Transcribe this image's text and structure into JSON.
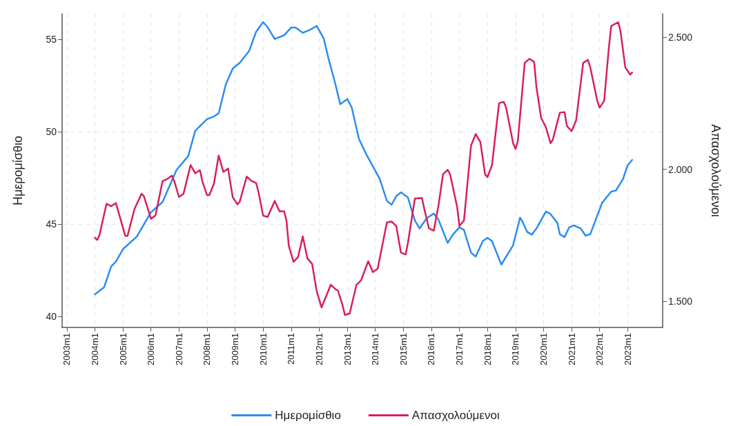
{
  "chart_data": {
    "type": "line",
    "ylabel": "Ημερομίσθιο",
    "y2label": "Απασχολούμενοι",
    "xlim": [
      "2002-11",
      "2024-04"
    ],
    "xticks": [
      {
        "value": "2003-01",
        "label": "2003m1"
      },
      {
        "value": "2004-01",
        "label": "2004m1"
      },
      {
        "value": "2005-01",
        "label": "2005m1"
      },
      {
        "value": "2006-01",
        "label": "2006m1"
      },
      {
        "value": "2007-01",
        "label": "2007m1"
      },
      {
        "value": "2008-01",
        "label": "2008m1"
      },
      {
        "value": "2009-01",
        "label": "2009m1"
      },
      {
        "value": "2010-01",
        "label": "2010m1"
      },
      {
        "value": "2011-01",
        "label": "2011m1"
      },
      {
        "value": "2012-01",
        "label": "2012m1"
      },
      {
        "value": "2013-01",
        "label": "2013m1"
      },
      {
        "value": "2014-01",
        "label": "2014m1"
      },
      {
        "value": "2015-01",
        "label": "2015m1"
      },
      {
        "value": "2016-01",
        "label": "2016m1"
      },
      {
        "value": "2017-01",
        "label": "2017m1"
      },
      {
        "value": "2018-01",
        "label": "2018m1"
      },
      {
        "value": "2019-01",
        "label": "2019m1"
      },
      {
        "value": "2020-01",
        "label": "2020m1"
      },
      {
        "value": "2021-01",
        "label": "2021m1"
      },
      {
        "value": "2022-01",
        "label": "2022m1"
      },
      {
        "value": "2023-01",
        "label": "2023m1"
      }
    ],
    "ylim": [
      39.4,
      56.4
    ],
    "yticks": [
      40,
      45,
      50,
      55
    ],
    "y2lim": [
      1400,
      2590
    ],
    "y2ticks": [
      {
        "value": 1500,
        "label": "1.500"
      },
      {
        "value": 2000,
        "label": "2.000"
      },
      {
        "value": 2500,
        "label": "2.500"
      }
    ],
    "grid": true,
    "legend": "bottom",
    "marker": "none",
    "line_style": "solid",
    "series": [
      {
        "name": "Ημερομίσθιο",
        "color": "#2b8cf0",
        "x": [
          "2004-01",
          "2004-05",
          "2004-08",
          "2004-10",
          "2005-01",
          "2005-07",
          "2006-01",
          "2006-06",
          "2006-12",
          "2007-05",
          "2007-08",
          "2008-01",
          "2008-04",
          "2008-06",
          "2008-09",
          "2008-12",
          "2009-03",
          "2009-07",
          "2009-10",
          "2010-01",
          "2010-03",
          "2010-06",
          "2010-10",
          "2011-01",
          "2011-03",
          "2011-06",
          "2011-09",
          "2011-12",
          "2012-03",
          "2012-05",
          "2012-08",
          "2012-10",
          "2013-01",
          "2013-03",
          "2013-06",
          "2013-09",
          "2013-12",
          "2014-03",
          "2014-06",
          "2014-08",
          "2014-10",
          "2014-12",
          "2015-03",
          "2015-06",
          "2015-08",
          "2015-11",
          "2016-02",
          "2016-04",
          "2016-08",
          "2016-10",
          "2017-01",
          "2017-03",
          "2017-06",
          "2017-08",
          "2017-11",
          "2018-01",
          "2018-03",
          "2018-07",
          "2018-12",
          "2019-03",
          "2019-04",
          "2019-06",
          "2019-08",
          "2019-10",
          "2020-02",
          "2020-04",
          "2020-07",
          "2020-08",
          "2020-10",
          "2020-12",
          "2021-02",
          "2021-05",
          "2021-07",
          "2021-09",
          "2022-02",
          "2022-04",
          "2022-06",
          "2022-08",
          "2022-11",
          "2023-01",
          "2023-03"
        ],
        "values": [
          41.19,
          41.58,
          42.7,
          42.96,
          43.64,
          44.33,
          45.64,
          46.2,
          47.94,
          48.69,
          50.06,
          50.69,
          50.84,
          51.0,
          52.56,
          53.43,
          53.74,
          54.37,
          55.42,
          55.95,
          55.67,
          55.03,
          55.24,
          55.65,
          55.65,
          55.37,
          55.53,
          55.74,
          55.05,
          53.99,
          52.56,
          51.5,
          51.78,
          51.31,
          49.63,
          48.82,
          48.13,
          47.44,
          46.26,
          46.05,
          46.51,
          46.72,
          46.45,
          45.2,
          44.76,
          45.32,
          45.57,
          45.26,
          43.98,
          44.39,
          44.83,
          44.68,
          43.45,
          43.24,
          44.08,
          44.26,
          44.08,
          42.81,
          43.85,
          45.35,
          45.14,
          44.58,
          44.43,
          44.76,
          45.68,
          45.55,
          45.05,
          44.45,
          44.3,
          44.83,
          44.93,
          44.76,
          44.38,
          44.45,
          46.14,
          46.45,
          46.76,
          46.82,
          47.44,
          48.19,
          48.48
        ]
      },
      {
        "name": "Απασχολούμενοι",
        "color": "#d81e5b",
        "axis": "y2",
        "x": [
          "2004-01",
          "2004-02",
          "2004-03",
          "2004-06",
          "2004-08",
          "2004-10",
          "2004-11",
          "2005-02",
          "2005-03",
          "2005-06",
          "2005-09",
          "2005-10",
          "2006-01",
          "2006-03",
          "2006-06",
          "2006-08",
          "2006-10",
          "2006-11",
          "2007-01",
          "2007-03",
          "2007-06",
          "2007-08",
          "2007-10",
          "2007-11",
          "2008-01",
          "2008-02",
          "2008-04",
          "2008-06",
          "2008-08",
          "2008-10",
          "2008-12",
          "2009-02",
          "2009-03",
          "2009-06",
          "2009-08",
          "2009-10",
          "2009-11",
          "2010-01",
          "2010-03",
          "2010-06",
          "2010-08",
          "2010-10",
          "2010-11",
          "2010-12",
          "2011-02",
          "2011-04",
          "2011-06",
          "2011-08",
          "2011-10",
          "2011-12",
          "2012-02",
          "2012-06",
          "2012-08",
          "2012-09",
          "2012-11",
          "2012-12",
          "2013-02",
          "2013-05",
          "2013-07",
          "2013-10",
          "2013-12",
          "2014-02",
          "2014-06",
          "2014-08",
          "2014-10",
          "2014-12",
          "2015-02",
          "2015-03",
          "2015-06",
          "2015-09",
          "2015-10",
          "2015-12",
          "2016-02",
          "2016-04",
          "2016-06",
          "2016-08",
          "2016-09",
          "2016-12",
          "2017-01",
          "2017-03",
          "2017-06",
          "2017-08",
          "2017-10",
          "2017-12",
          "2018-01",
          "2018-03",
          "2018-06",
          "2018-08",
          "2018-09",
          "2018-12",
          "2019-01",
          "2019-02",
          "2019-05",
          "2019-07",
          "2019-09",
          "2019-10",
          "2019-12",
          "2020-02",
          "2020-04",
          "2020-05",
          "2020-07",
          "2020-08",
          "2020-10",
          "2020-11",
          "2021-01",
          "2021-03",
          "2021-06",
          "2021-08",
          "2021-09",
          "2021-12",
          "2022-01",
          "2022-03",
          "2022-05",
          "2022-06",
          "2022-09",
          "2022-10",
          "2022-12",
          "2023-02",
          "2023-03"
        ],
        "values": [
          1741,
          1732,
          1750,
          1869,
          1860,
          1872,
          1841,
          1747,
          1747,
          1850,
          1907,
          1898,
          1812,
          1825,
          1955,
          1963,
          1976,
          1955,
          1895,
          1907,
          2016,
          1985,
          1997,
          1955,
          1902,
          1902,
          1946,
          2052,
          1990,
          2003,
          1894,
          1867,
          1876,
          1972,
          1956,
          1948,
          1915,
          1824,
          1819,
          1880,
          1841,
          1841,
          1806,
          1710,
          1649,
          1667,
          1745,
          1662,
          1641,
          1536,
          1476,
          1562,
          1545,
          1540,
          1484,
          1447,
          1453,
          1562,
          1579,
          1651,
          1610,
          1623,
          1798,
          1802,
          1785,
          1684,
          1677,
          1719,
          1889,
          1891,
          1850,
          1776,
          1767,
          1859,
          1981,
          1998,
          1981,
          1859,
          1785,
          1806,
          2090,
          2134,
          2103,
          1981,
          1970,
          2016,
          2251,
          2256,
          2234,
          2099,
          2077,
          2107,
          2404,
          2419,
          2408,
          2312,
          2195,
          2160,
          2099,
          2112,
          2181,
          2215,
          2217,
          2164,
          2145,
          2186,
          2404,
          2415,
          2387,
          2260,
          2234,
          2260,
          2461,
          2544,
          2558,
          2522,
          2387,
          2360,
          2367
        ]
      }
    ]
  }
}
